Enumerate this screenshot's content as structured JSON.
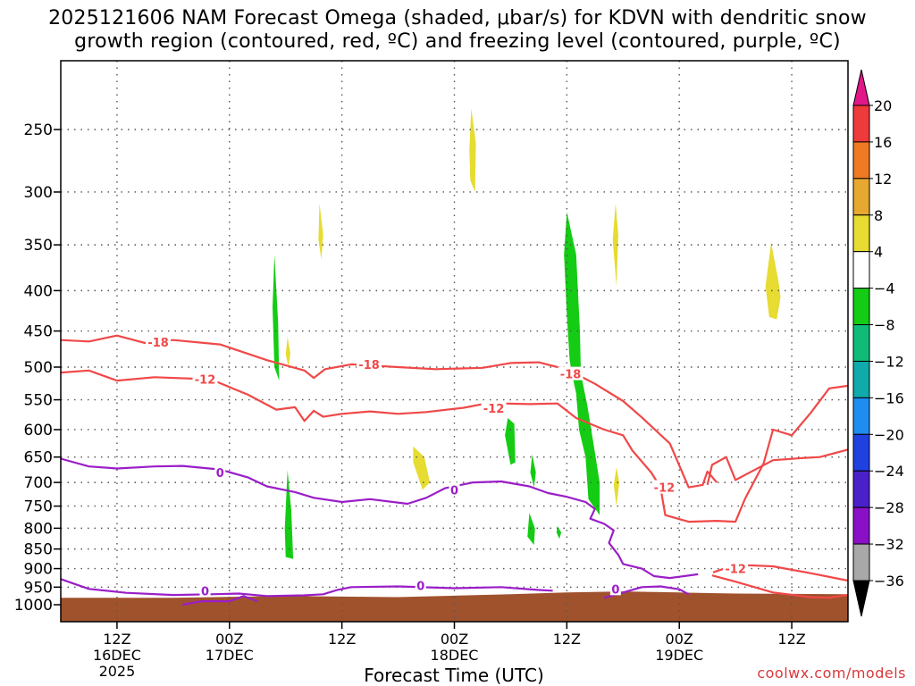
{
  "title_line1": "2025121606 NAM Forecast Omega (shaded, μbar/s) for KDVN with dendritic snow",
  "title_line2": "growth region (contoured, red, ºC) and freezing level (contoured, purple, ºC)",
  "xaxis_title": "Forecast Time (UTC)",
  "credit": "coolwx.com/models",
  "colors": {
    "terrain": "#a0522d",
    "dgz_contour": "#f04848",
    "freezing_contour": "#9a1ec8",
    "omega_green": "#14cc14",
    "omega_yellow": "#e6dc32"
  },
  "chart_data": {
    "type": "time-height cross section",
    "x_unit": "hours from 2025-12-16 06Z",
    "xlim": [
      0,
      84
    ],
    "ylim_hpa": [
      1000,
      200
    ],
    "y_ticks": [
      250,
      300,
      350,
      400,
      450,
      500,
      550,
      600,
      650,
      700,
      750,
      800,
      850,
      900,
      950,
      1000
    ],
    "x_ticks": [
      {
        "hour": 6,
        "lines": [
          "12Z",
          "16DEC",
          "2025"
        ]
      },
      {
        "hour": 18,
        "lines": [
          "00Z",
          "17DEC"
        ]
      },
      {
        "hour": 30,
        "lines": [
          "12Z"
        ]
      },
      {
        "hour": 42,
        "lines": [
          "00Z",
          "18DEC"
        ]
      },
      {
        "hour": 54,
        "lines": [
          "12Z"
        ]
      },
      {
        "hour": 66,
        "lines": [
          "00Z",
          "19DEC"
        ]
      },
      {
        "hour": 78,
        "lines": [
          "12Z"
        ]
      }
    ],
    "colorbar": {
      "unit": "μbar/s",
      "labels": [
        "20",
        "16",
        "12",
        "8",
        "4",
        "−4",
        "−8",
        "−12",
        "−16",
        "−20",
        "−24",
        "−28",
        "−32",
        "−36"
      ],
      "bin_colors": [
        "#ee3a3a",
        "#ee7a22",
        "#e6a830",
        "#e6dc32",
        "#ffffff",
        "#14cc14",
        "#10bb7a",
        "#10aaaa",
        "#1e8cf0",
        "#2040e0",
        "#4a20c8",
        "#8a10c8",
        "#a8a8a8"
      ],
      "top_arrow": "#e01888",
      "bottom_arrow": "#000000"
    },
    "contours": [
      {
        "level": "-18",
        "color": "red",
        "labels": [
          {
            "hour": 10.4,
            "hpa": 465,
            "text": "-18"
          },
          {
            "hour": 32.9,
            "hpa": 496,
            "text": "-18"
          },
          {
            "hour": 54.4,
            "hpa": 510,
            "text": "-18"
          }
        ],
        "points": [
          [
            0,
            462
          ],
          [
            3,
            464
          ],
          [
            6,
            456
          ],
          [
            9,
            466
          ],
          [
            12,
            462
          ],
          [
            17,
            468
          ],
          [
            22,
            490
          ],
          [
            26,
            505
          ],
          [
            27,
            516
          ],
          [
            28.2,
            503
          ],
          [
            31,
            496
          ],
          [
            36,
            500
          ],
          [
            40,
            503
          ],
          [
            45,
            501
          ],
          [
            48,
            494
          ],
          [
            51,
            493
          ],
          [
            53,
            500
          ],
          [
            54,
            503
          ],
          [
            57,
            525
          ],
          [
            60,
            552
          ],
          [
            62,
            579
          ],
          [
            65,
            625
          ],
          [
            67,
            710
          ],
          [
            68.5,
            705
          ],
          [
            69,
            678
          ],
          [
            70,
            700
          ]
        ]
      },
      {
        "level": "-12",
        "color": "red",
        "labels": [
          {
            "hour": 15.4,
            "hpa": 518,
            "text": "-12"
          },
          {
            "hour": 46.2,
            "hpa": 564,
            "text": "-12"
          },
          {
            "hour": 64.4,
            "hpa": 710,
            "text": "-12"
          },
          {
            "hour": 72,
            "hpa": 900,
            "text": "-12"
          }
        ],
        "points": [
          [
            0,
            508
          ],
          [
            3,
            505
          ],
          [
            6,
            520
          ],
          [
            10,
            515
          ],
          [
            16,
            518
          ],
          [
            20,
            542
          ],
          [
            23,
            566
          ],
          [
            25,
            562
          ],
          [
            26,
            585
          ],
          [
            27,
            568
          ],
          [
            28,
            578
          ],
          [
            30,
            573
          ],
          [
            33,
            569
          ],
          [
            36,
            573
          ],
          [
            39,
            570
          ],
          [
            43,
            563
          ],
          [
            45,
            557
          ],
          [
            47,
            556
          ],
          [
            50,
            557
          ],
          [
            53,
            556
          ],
          [
            55,
            580
          ],
          [
            58,
            600
          ],
          [
            60,
            610
          ],
          [
            61,
            638
          ],
          [
            63,
            680
          ],
          [
            64,
            710
          ],
          [
            64.5,
            770
          ],
          [
            67,
            785
          ],
          [
            70,
            783
          ],
          [
            72,
            785
          ],
          [
            73,
            735
          ],
          [
            75,
            662
          ],
          [
            76,
            600
          ],
          [
            78,
            610
          ],
          [
            80,
            572
          ],
          [
            82,
            532
          ],
          [
            84,
            528
          ]
        ]
      },
      {
        "level": "-12b",
        "color": "red",
        "labels": [],
        "points": [
          [
            69,
            705
          ],
          [
            69.5,
            665
          ],
          [
            71,
            650
          ],
          [
            72,
            695
          ],
          [
            73,
            685
          ],
          [
            76,
            656
          ],
          [
            79,
            652
          ],
          [
            81,
            650
          ],
          [
            84,
            636
          ]
        ]
      },
      {
        "level": "-12c",
        "color": "red",
        "labels": [],
        "points": [
          [
            69.6,
            910
          ],
          [
            72,
            890
          ],
          [
            76,
            894
          ],
          [
            80,
            912
          ],
          [
            84,
            932
          ]
        ]
      },
      {
        "level": "-12d",
        "color": "red",
        "labels": [],
        "points": [
          [
            69.5,
            918
          ],
          [
            72,
            935
          ],
          [
            76,
            965
          ],
          [
            80,
            978
          ],
          [
            82,
            980
          ],
          [
            84,
            972
          ]
        ]
      },
      {
        "level": "0",
        "color": "purple",
        "labels": [
          {
            "hour": 17,
            "hpa": 680,
            "text": "0"
          },
          {
            "hour": 42,
            "hpa": 715,
            "text": "0"
          },
          {
            "hour": 15.4,
            "hpa": 960,
            "text": "0"
          },
          {
            "hour": 38.4,
            "hpa": 945,
            "text": "0"
          },
          {
            "hour": 59.2,
            "hpa": 955,
            "text": "0"
          }
        ],
        "points": [
          [
            0,
            653
          ],
          [
            3,
            668
          ],
          [
            6,
            672
          ],
          [
            10,
            668
          ],
          [
            13,
            667
          ],
          [
            17,
            674
          ],
          [
            20,
            690
          ],
          [
            22,
            708
          ],
          [
            25,
            720
          ],
          [
            27,
            732
          ],
          [
            30,
            741
          ],
          [
            33,
            735
          ],
          [
            37,
            745
          ],
          [
            39,
            732
          ],
          [
            41,
            712
          ],
          [
            44,
            700
          ],
          [
            47,
            698
          ],
          [
            50,
            708
          ],
          [
            52,
            722
          ],
          [
            54,
            730
          ],
          [
            56,
            741
          ],
          [
            57,
            756
          ],
          [
            56.5,
            778
          ],
          [
            58,
            790
          ],
          [
            59,
            805
          ],
          [
            58.5,
            835
          ],
          [
            59.5,
            865
          ],
          [
            60,
            888
          ],
          [
            62,
            900
          ],
          [
            63.3,
            920
          ],
          [
            65,
            925
          ],
          [
            68,
            915
          ]
        ]
      },
      {
        "level": "0b",
        "color": "purple",
        "labels": [],
        "points": [
          [
            0,
            928
          ],
          [
            3,
            955
          ],
          [
            7,
            966
          ],
          [
            12,
            972
          ],
          [
            16,
            970
          ],
          [
            19,
            968
          ],
          [
            22,
            975
          ],
          [
            26,
            973
          ],
          [
            28,
            970
          ],
          [
            29.5,
            958
          ],
          [
            31,
            950
          ],
          [
            36,
            948
          ],
          [
            42,
            953
          ],
          [
            47,
            950
          ],
          [
            51,
            958
          ],
          [
            52.5,
            960
          ]
        ]
      },
      {
        "level": "0c",
        "color": "purple",
        "labels": [],
        "points": [
          [
            13,
            1000
          ],
          [
            15,
            990
          ],
          [
            18,
            990
          ],
          [
            19.5,
            975
          ],
          [
            21,
            990
          ]
        ]
      },
      {
        "level": "0d",
        "color": "purple",
        "labels": [],
        "points": [
          [
            58,
            980
          ],
          [
            60,
            965
          ],
          [
            62,
            950
          ],
          [
            64,
            948
          ],
          [
            66,
            956
          ],
          [
            67,
            970
          ]
        ]
      }
    ],
    "omega_shaded": [
      {
        "color": "green",
        "points": [
          [
            22.8,
            360
          ],
          [
            23.2,
            440
          ],
          [
            23.3,
            520
          ],
          [
            22.8,
            500
          ],
          [
            22.6,
            420
          ]
        ]
      },
      {
        "color": "green",
        "points": [
          [
            24.2,
            675
          ],
          [
            24.6,
            760
          ],
          [
            24.8,
            875
          ],
          [
            24,
            870
          ],
          [
            23.9,
            800
          ]
        ]
      },
      {
        "color": "yellow",
        "points": [
          [
            24.2,
            458
          ],
          [
            24.5,
            480
          ],
          [
            24.3,
            500
          ],
          [
            24,
            482
          ]
        ]
      },
      {
        "color": "yellow",
        "points": [
          [
            27.6,
            310
          ],
          [
            28,
            340
          ],
          [
            27.8,
            365
          ],
          [
            27.5,
            345
          ]
        ]
      },
      {
        "color": "yellow",
        "points": [
          [
            37.6,
            630
          ],
          [
            38.8,
            650
          ],
          [
            39.4,
            700
          ],
          [
            38.6,
            715
          ],
          [
            37.6,
            660
          ]
        ]
      },
      {
        "color": "yellow",
        "points": [
          [
            43.8,
            235
          ],
          [
            44.3,
            260
          ],
          [
            44.2,
            300
          ],
          [
            43.7,
            290
          ],
          [
            43.6,
            265
          ]
        ]
      },
      {
        "color": "green",
        "points": [
          [
            47.7,
            580
          ],
          [
            48.4,
            590
          ],
          [
            48.5,
            660
          ],
          [
            48,
            665
          ],
          [
            47.4,
            610
          ]
        ]
      },
      {
        "color": "green",
        "points": [
          [
            50.3,
            645
          ],
          [
            50.7,
            680
          ],
          [
            50.5,
            710
          ],
          [
            50.1,
            680
          ]
        ]
      },
      {
        "color": "green",
        "points": [
          [
            50,
            765
          ],
          [
            50.6,
            800
          ],
          [
            50.5,
            840
          ],
          [
            49.8,
            820
          ]
        ]
      },
      {
        "color": "green",
        "points": [
          [
            53,
            795
          ],
          [
            53.4,
            810
          ],
          [
            53.2,
            825
          ],
          [
            52.9,
            810
          ]
        ]
      },
      {
        "color": "green",
        "points": [
          [
            54,
            318
          ],
          [
            55,
            360
          ],
          [
            55.4,
            450
          ],
          [
            55.5,
            510
          ],
          [
            56.2,
            560
          ],
          [
            56.8,
            620
          ],
          [
            57.5,
            700
          ],
          [
            57.5,
            770
          ],
          [
            56.3,
            735
          ],
          [
            56,
            650
          ],
          [
            55.3,
            600
          ],
          [
            55,
            540
          ],
          [
            54.7,
            520
          ],
          [
            54.3,
            490
          ],
          [
            54,
            430
          ],
          [
            53.7,
            360
          ]
        ]
      },
      {
        "color": "yellow",
        "points": [
          [
            59.2,
            310
          ],
          [
            59.5,
            340
          ],
          [
            59.3,
            395
          ],
          [
            58.9,
            345
          ]
        ]
      },
      {
        "color": "yellow",
        "points": [
          [
            59.3,
            670
          ],
          [
            59.6,
            700
          ],
          [
            59.3,
            750
          ],
          [
            59,
            705
          ]
        ]
      },
      {
        "color": "yellow",
        "points": [
          [
            75.8,
            348
          ],
          [
            76.6,
            390
          ],
          [
            76.8,
            408
          ],
          [
            76.4,
            435
          ],
          [
            75.6,
            432
          ],
          [
            75.2,
            395
          ]
        ]
      }
    ],
    "terrain_top_hpa": [
      [
        0,
        980
      ],
      [
        12,
        980
      ],
      [
        24,
        975
      ],
      [
        36,
        978
      ],
      [
        48,
        970
      ],
      [
        54,
        965
      ],
      [
        60,
        962
      ],
      [
        66,
        965
      ],
      [
        72,
        968
      ],
      [
        84,
        970
      ]
    ]
  }
}
